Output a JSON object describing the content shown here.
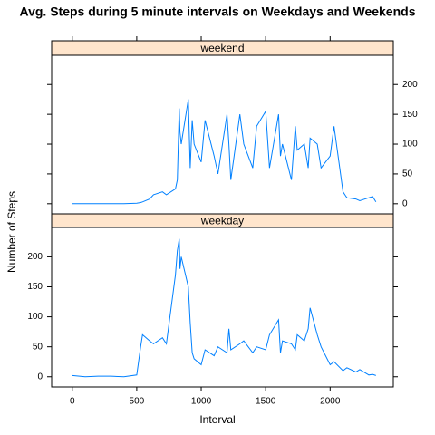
{
  "chart_data": {
    "type": "line",
    "title": "Avg. Steps during 5 minute intervals on Weekdays and Weekends",
    "xlabel": "Interval",
    "ylabel": "Number of Steps",
    "xlim": [
      -160,
      2490
    ],
    "ylim": [
      -17,
      249
    ],
    "xticks": [
      0,
      500,
      1000,
      1500,
      2000
    ],
    "yticks": [
      0,
      50,
      100,
      150,
      200
    ],
    "strip_color": "#ffe5cc",
    "x": [
      0,
      100,
      200,
      300,
      400,
      500,
      530,
      545,
      600,
      630,
      700,
      730,
      800,
      815,
      830,
      835,
      845,
      900,
      915,
      930,
      945,
      1000,
      1030,
      1100,
      1130,
      1200,
      1215,
      1230,
      1300,
      1330,
      1400,
      1430,
      1500,
      1530,
      1600,
      1615,
      1630,
      1700,
      1730,
      1745,
      1800,
      1830,
      1845,
      1900,
      1930,
      2000,
      2030,
      2100,
      2130,
      2200,
      2230,
      2300,
      2330,
      2355
    ],
    "series": [
      {
        "name": "weekend",
        "color": "#0080ff",
        "values": [
          0,
          0,
          0,
          0,
          0,
          1,
          2,
          3,
          8,
          15,
          20,
          15,
          25,
          40,
          160,
          120,
          100,
          175,
          60,
          140,
          100,
          70,
          140,
          80,
          50,
          150,
          100,
          40,
          150,
          100,
          60,
          130,
          155,
          60,
          150,
          80,
          100,
          40,
          130,
          90,
          100,
          60,
          110,
          100,
          60,
          80,
          130,
          20,
          10,
          8,
          5,
          10,
          12,
          3
        ]
      },
      {
        "name": "weekday",
        "color": "#0080ff",
        "values": [
          2,
          0,
          1,
          1,
          0,
          3,
          50,
          70,
          60,
          55,
          65,
          55,
          170,
          210,
          230,
          180,
          200,
          150,
          90,
          40,
          30,
          20,
          45,
          35,
          50,
          40,
          80,
          45,
          55,
          60,
          40,
          50,
          45,
          70,
          95,
          40,
          60,
          55,
          45,
          70,
          60,
          80,
          115,
          70,
          50,
          20,
          25,
          10,
          15,
          8,
          12,
          3,
          4,
          2
        ]
      }
    ]
  }
}
